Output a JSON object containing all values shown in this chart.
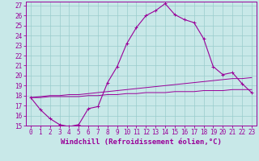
{
  "xlabel": "Windchill (Refroidissement éolien,°C)",
  "bg_color": "#c8e8e8",
  "line_color": "#990099",
  "grid_color": "#99cccc",
  "xlim": [
    -0.5,
    23.5
  ],
  "ylim": [
    15.0,
    27.4
  ],
  "xticks": [
    0,
    1,
    2,
    3,
    4,
    5,
    6,
    7,
    8,
    9,
    10,
    11,
    12,
    13,
    14,
    15,
    16,
    17,
    18,
    19,
    20,
    21,
    22,
    23
  ],
  "yticks": [
    15,
    16,
    17,
    18,
    19,
    20,
    21,
    22,
    23,
    24,
    25,
    26,
    27
  ],
  "line1_x": [
    0,
    1,
    2,
    3,
    4,
    5,
    6,
    7,
    8,
    9,
    10,
    11,
    12,
    13,
    14,
    15,
    16,
    17,
    18,
    19,
    20,
    21,
    22,
    23
  ],
  "line1_y": [
    17.8,
    16.6,
    15.7,
    15.1,
    14.9,
    15.1,
    16.7,
    16.9,
    19.3,
    20.9,
    23.2,
    24.8,
    26.0,
    26.5,
    27.2,
    26.1,
    25.6,
    25.3,
    23.7,
    20.9,
    20.1,
    20.3,
    19.2,
    18.3
  ],
  "line2_x": [
    0,
    1,
    2,
    3,
    4,
    5,
    6,
    7,
    8,
    9,
    10,
    11,
    12,
    13,
    14,
    15,
    16,
    17,
    18,
    19,
    20,
    21,
    22,
    23
  ],
  "line2_y": [
    17.8,
    17.8,
    17.9,
    17.9,
    17.9,
    17.9,
    18.0,
    18.0,
    18.1,
    18.1,
    18.2,
    18.2,
    18.3,
    18.3,
    18.3,
    18.4,
    18.4,
    18.4,
    18.5,
    18.5,
    18.5,
    18.6,
    18.6,
    18.6
  ],
  "line3_x": [
    0,
    1,
    2,
    3,
    4,
    5,
    6,
    7,
    8,
    9,
    10,
    11,
    12,
    13,
    14,
    15,
    16,
    17,
    18,
    19,
    20,
    21,
    22,
    23
  ],
  "line3_y": [
    17.8,
    17.9,
    18.0,
    18.0,
    18.1,
    18.1,
    18.2,
    18.3,
    18.4,
    18.5,
    18.6,
    18.7,
    18.8,
    18.9,
    19.0,
    19.1,
    19.2,
    19.3,
    19.4,
    19.5,
    19.6,
    19.7,
    19.7,
    19.8
  ],
  "tick_fontsize": 5.5,
  "xlabel_fontsize": 6.5
}
